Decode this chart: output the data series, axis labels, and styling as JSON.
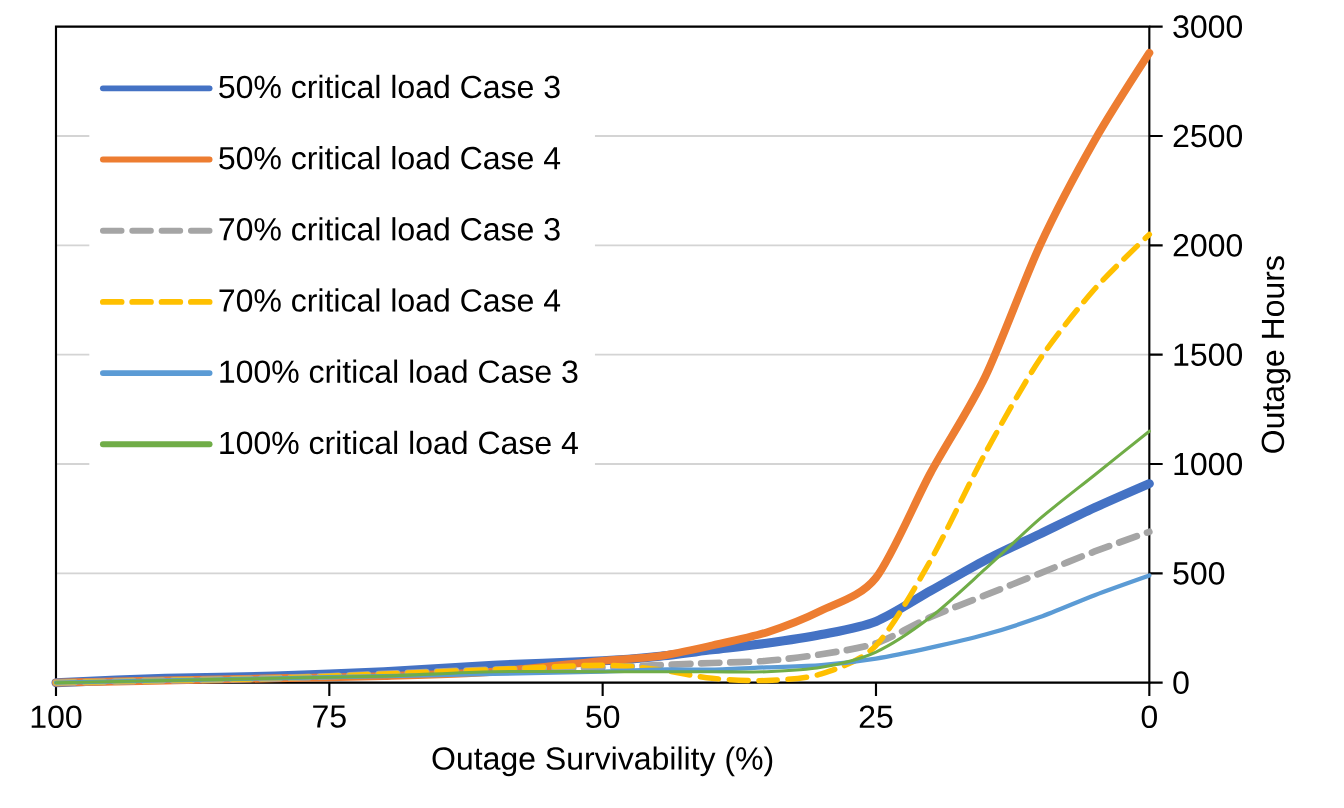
{
  "chart_data": {
    "type": "line",
    "xlabel": "Outage Survivability (%)",
    "ylabel": "Outage Hours",
    "x": [
      100,
      90,
      80,
      70,
      60,
      50,
      45,
      40,
      35,
      30,
      25,
      20,
      15,
      10,
      5,
      0
    ],
    "series": [
      {
        "name": "50% critical load Case 3",
        "color": "#4472c4",
        "line_style": "solid",
        "values": [
          0,
          20,
          30,
          50,
          80,
          100,
          120,
          150,
          180,
          220,
          280,
          420,
          560,
          680,
          800,
          910
        ]
      },
      {
        "name": "50% critical load Case 4",
        "color": "#ed7d31",
        "line_style": "solid",
        "values": [
          0,
          10,
          20,
          30,
          50,
          100,
          120,
          170,
          230,
          330,
          480,
          960,
          1400,
          2000,
          2480,
          2880
        ]
      },
      {
        "name": "70% critical load Case 3",
        "color": "#a5a5a5",
        "line_style": "dashed",
        "values": [
          0,
          10,
          20,
          40,
          60,
          70,
          80,
          90,
          100,
          130,
          180,
          300,
          400,
          500,
          600,
          690
        ]
      },
      {
        "name": "70% critical load Case 4",
        "color": "#ffc000",
        "line_style": "dashed",
        "values": [
          0,
          10,
          20,
          40,
          60,
          80,
          60,
          20,
          10,
          40,
          170,
          560,
          1050,
          1480,
          1800,
          2050
        ]
      },
      {
        "name": "100% critical load Case 3",
        "color": "#5b9bd5",
        "line_style": "solid",
        "values": [
          0,
          10,
          20,
          30,
          40,
          50,
          60,
          60,
          70,
          80,
          110,
          160,
          220,
          300,
          400,
          490
        ]
      },
      {
        "name": "100% critical load Case 4",
        "color": "#70ad47",
        "line_style": "solid",
        "values": [
          0,
          10,
          20,
          30,
          50,
          50,
          50,
          50,
          50,
          70,
          140,
          300,
          520,
          750,
          950,
          1150
        ]
      }
    ],
    "xlim": [
      100,
      0
    ],
    "xticks": [
      100,
      75,
      50,
      25,
      0
    ],
    "ylim": [
      0,
      3000
    ],
    "yticks": [
      0,
      500,
      1000,
      1500,
      2000,
      2500,
      3000
    ],
    "grid": "y",
    "legend": "top left",
    "marker": "none"
  }
}
